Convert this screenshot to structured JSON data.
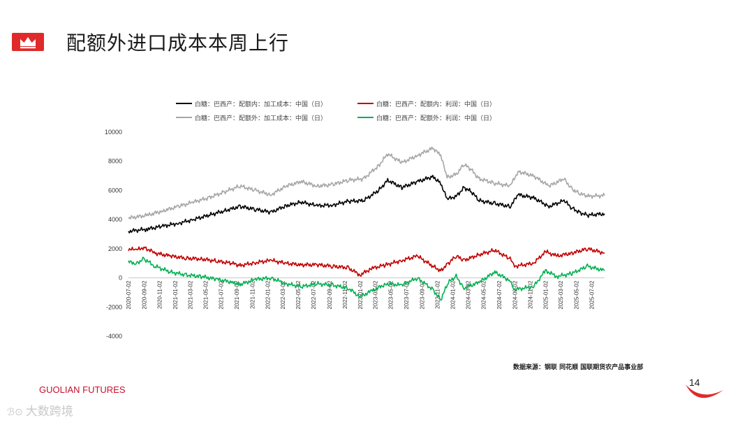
{
  "slide": {
    "title": "配额外进口成本本周上行",
    "source": "数据来源：钢联 同花顺 国联期货农产品事业部",
    "brand": "GUOLIAN FUTURES",
    "page_number": "14",
    "watermark": "大数跨境",
    "colors": {
      "brand_red": "#c8102e"
    }
  },
  "chart_data": {
    "type": "line",
    "title": "",
    "xlabel": "",
    "ylabel": "",
    "ylim": [
      -4000,
      10000
    ],
    "yticks": [
      -4000,
      -2000,
      0,
      2000,
      4000,
      6000,
      8000,
      10000
    ],
    "xlim": [
      "2020-07-02",
      "2025-08-22"
    ],
    "xticks": [
      "2020-07-02",
      "2020-09-02",
      "2020-11-02",
      "2021-01-02",
      "2021-03-02",
      "2021-05-02",
      "2021-07-02",
      "2021-09-02",
      "2021-11-02",
      "2022-01-02",
      "2022-03-02",
      "2022-05-02",
      "2022-07-02",
      "2022-09-02",
      "2022-11-02",
      "2023-01-02",
      "2023-03-02",
      "2023-05-02",
      "2023-07-02",
      "2023-09-02",
      "2023-11-02",
      "2024-01-02",
      "2024-03-02",
      "2024-05-02",
      "2024-07-02",
      "2024-09-02",
      "2024-11-02",
      "2025-01-02",
      "2025-03-02",
      "2025-05-02",
      "2025-07-02"
    ],
    "grid": false,
    "legend_position": "top",
    "series": [
      {
        "name": "白糖：巴西产：配额内：加工成本：中国（日）",
        "color": "#000000",
        "points": [
          [
            "2020-07-02",
            3200
          ],
          [
            "2020-09-15",
            3350
          ],
          [
            "2020-11-15",
            3550
          ],
          [
            "2021-01-15",
            3750
          ],
          [
            "2021-03-15",
            4000
          ],
          [
            "2021-05-15",
            4300
          ],
          [
            "2021-07-15",
            4600
          ],
          [
            "2021-09-15",
            4900
          ],
          [
            "2021-11-15",
            4700
          ],
          [
            "2022-01-15",
            4500
          ],
          [
            "2022-03-15",
            4950
          ],
          [
            "2022-05-15",
            5200
          ],
          [
            "2022-07-15",
            4950
          ],
          [
            "2022-09-15",
            5000
          ],
          [
            "2022-11-15",
            5250
          ],
          [
            "2023-01-15",
            5300
          ],
          [
            "2023-03-15",
            6000
          ],
          [
            "2023-04-20",
            6700
          ],
          [
            "2023-06-15",
            6200
          ],
          [
            "2023-08-15",
            6600
          ],
          [
            "2023-10-15",
            6950
          ],
          [
            "2023-11-15",
            6500
          ],
          [
            "2023-12-10",
            5400
          ],
          [
            "2024-01-15",
            5600
          ],
          [
            "2024-02-15",
            6200
          ],
          [
            "2024-03-15",
            5900
          ],
          [
            "2024-04-15",
            5300
          ],
          [
            "2024-06-15",
            5100
          ],
          [
            "2024-08-15",
            4900
          ],
          [
            "2024-09-15",
            5700
          ],
          [
            "2024-11-15",
            5500
          ],
          [
            "2025-01-15",
            4900
          ],
          [
            "2025-03-15",
            5300
          ],
          [
            "2025-04-15",
            4800
          ],
          [
            "2025-05-15",
            4500
          ],
          [
            "2025-06-15",
            4300
          ],
          [
            "2025-08-22",
            4400
          ]
        ]
      },
      {
        "name": "白糖：巴西产：配额内：利润：中国（日）",
        "color": "#c00000",
        "points": [
          [
            "2020-07-02",
            2000
          ],
          [
            "2020-08-01",
            1900
          ],
          [
            "2020-09-01",
            2100
          ],
          [
            "2020-10-15",
            1700
          ],
          [
            "2020-12-15",
            1500
          ],
          [
            "2021-02-15",
            1350
          ],
          [
            "2021-04-15",
            1300
          ],
          [
            "2021-06-15",
            1150
          ],
          [
            "2021-08-15",
            1000
          ],
          [
            "2021-09-15",
            850
          ],
          [
            "2021-11-15",
            1050
          ],
          [
            "2022-01-15",
            1200
          ],
          [
            "2022-03-15",
            1000
          ],
          [
            "2022-05-15",
            900
          ],
          [
            "2022-07-15",
            900
          ],
          [
            "2022-09-15",
            800
          ],
          [
            "2022-11-15",
            700
          ],
          [
            "2023-01-01",
            200
          ],
          [
            "2023-02-15",
            650
          ],
          [
            "2023-04-15",
            900
          ],
          [
            "2023-06-15",
            1200
          ],
          [
            "2023-08-15",
            1500
          ],
          [
            "2023-10-15",
            800
          ],
          [
            "2023-11-15",
            500
          ],
          [
            "2023-12-15",
            1000
          ],
          [
            "2024-01-15",
            1500
          ],
          [
            "2024-02-15",
            1200
          ],
          [
            "2024-04-15",
            1600
          ],
          [
            "2024-06-15",
            1900
          ],
          [
            "2024-08-15",
            1300
          ],
          [
            "2024-09-01",
            800
          ],
          [
            "2024-11-15",
            1000
          ],
          [
            "2025-01-01",
            1800
          ],
          [
            "2025-02-15",
            1500
          ],
          [
            "2025-04-15",
            1700
          ],
          [
            "2025-06-15",
            2000
          ],
          [
            "2025-08-22",
            1700
          ]
        ]
      },
      {
        "name": "白糖：巴西产：配额外：加工成本：中国（日）",
        "color": "#a6a6a6",
        "points": [
          [
            "2020-07-02",
            4100
          ],
          [
            "2020-09-15",
            4300
          ],
          [
            "2020-11-15",
            4600
          ],
          [
            "2021-01-15",
            4900
          ],
          [
            "2021-03-15",
            5200
          ],
          [
            "2021-05-15",
            5500
          ],
          [
            "2021-07-15",
            5900
          ],
          [
            "2021-09-15",
            6300
          ],
          [
            "2021-11-15",
            6000
          ],
          [
            "2022-01-15",
            5700
          ],
          [
            "2022-03-15",
            6300
          ],
          [
            "2022-05-15",
            6600
          ],
          [
            "2022-07-15",
            6300
          ],
          [
            "2022-09-15",
            6400
          ],
          [
            "2022-11-15",
            6700
          ],
          [
            "2023-01-15",
            6800
          ],
          [
            "2023-03-15",
            7700
          ],
          [
            "2023-04-20",
            8500
          ],
          [
            "2023-06-15",
            7900
          ],
          [
            "2023-08-15",
            8400
          ],
          [
            "2023-10-15",
            8900
          ],
          [
            "2023-11-15",
            8400
          ],
          [
            "2023-12-10",
            6900
          ],
          [
            "2024-01-15",
            7100
          ],
          [
            "2024-02-15",
            7800
          ],
          [
            "2024-03-15",
            7400
          ],
          [
            "2024-04-15",
            6800
          ],
          [
            "2024-06-15",
            6500
          ],
          [
            "2024-08-15",
            6300
          ],
          [
            "2024-09-15",
            7300
          ],
          [
            "2024-11-15",
            7000
          ],
          [
            "2025-01-15",
            6300
          ],
          [
            "2025-03-15",
            6800
          ],
          [
            "2025-04-15",
            6100
          ],
          [
            "2025-05-15",
            5800
          ],
          [
            "2025-06-15",
            5600
          ],
          [
            "2025-08-22",
            5650
          ]
        ]
      },
      {
        "name": "白糖：巴西产：配额外：利润：中国（日）",
        "color": "#00b050",
        "points": [
          [
            "2020-07-02",
            1100
          ],
          [
            "2020-08-01",
            1000
          ],
          [
            "2020-09-01",
            1300
          ],
          [
            "2020-10-15",
            800
          ],
          [
            "2020-12-15",
            400
          ],
          [
            "2021-02-15",
            200
          ],
          [
            "2021-04-15",
            100
          ],
          [
            "2021-06-15",
            -100
          ],
          [
            "2021-08-15",
            -300
          ],
          [
            "2021-09-15",
            -450
          ],
          [
            "2021-11-15",
            -100
          ],
          [
            "2022-01-15",
            0
          ],
          [
            "2022-03-15",
            -400
          ],
          [
            "2022-05-15",
            -600
          ],
          [
            "2022-07-15",
            -400
          ],
          [
            "2022-09-15",
            -500
          ],
          [
            "2022-11-15",
            -700
          ],
          [
            "2023-01-01",
            -1300
          ],
          [
            "2023-02-15",
            -900
          ],
          [
            "2023-04-15",
            -400
          ],
          [
            "2023-06-15",
            -500
          ],
          [
            "2023-08-15",
            0
          ],
          [
            "2023-10-15",
            -800
          ],
          [
            "2023-11-15",
            -1500
          ],
          [
            "2023-12-15",
            -300
          ],
          [
            "2024-01-15",
            100
          ],
          [
            "2024-02-15",
            -700
          ],
          [
            "2024-04-15",
            -300
          ],
          [
            "2024-06-15",
            400
          ],
          [
            "2024-08-15",
            -200
          ],
          [
            "2024-09-01",
            -800
          ],
          [
            "2024-11-15",
            -600
          ],
          [
            "2025-01-01",
            500
          ],
          [
            "2025-02-15",
            100
          ],
          [
            "2025-04-15",
            300
          ],
          [
            "2025-06-15",
            800
          ],
          [
            "2025-08-22",
            500
          ]
        ]
      }
    ]
  }
}
